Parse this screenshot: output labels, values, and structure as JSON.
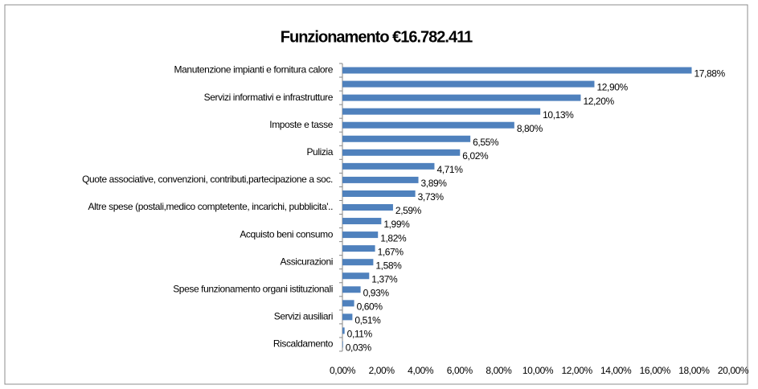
{
  "chart_data": {
    "type": "hbar",
    "title": "Funzionamento €16.782.411",
    "categories": [
      "Manutenzione impianti e fornitura calore",
      null,
      "Servizi informativi e infrastrutture",
      null,
      "Imposte e tasse",
      null,
      "Pulizia",
      null,
      "Quote associative, convenzioni, contributi,partecipazione a soc.",
      null,
      "Altre spese (postali,medico comptetente, incarichi, pubblicita'..",
      null,
      "Acquisto beni consumo",
      null,
      "Assicurazioni",
      null,
      "Spese funzionamento organi istituzionali",
      null,
      "Servizi ausiliari",
      null,
      "Riscaldamento"
    ],
    "values": [
      17.88,
      12.9,
      12.2,
      10.13,
      8.8,
      6.55,
      6.02,
      4.71,
      3.89,
      3.73,
      2.59,
      1.99,
      1.82,
      1.67,
      1.58,
      1.37,
      0.93,
      0.6,
      0.51,
      0.11,
      0.03
    ],
    "value_labels": [
      "17,88%",
      "12,90%",
      "12,20%",
      "10,13%",
      "8,80%",
      "6,55%",
      "6,02%",
      "4,71%",
      "3,89%",
      "3,73%",
      "2,59%",
      "1,99%",
      "1,82%",
      "1,67%",
      "1,58%",
      "1,37%",
      "0,93%",
      "0,60%",
      "0,51%",
      "0,11%",
      "0,03%"
    ],
    "color": "#4f81bd",
    "xlim": [
      0,
      20
    ],
    "xticks": [
      {
        "value": 0,
        "label": "0,00%"
      },
      {
        "value": 2,
        "label": "2,00%"
      },
      {
        "value": 4,
        "label": "4,00%"
      },
      {
        "value": 6,
        "label": "6,00%"
      },
      {
        "value": 8,
        "label": "8,00%"
      },
      {
        "value": 10,
        "label": "10,00%"
      },
      {
        "value": 12,
        "label": "12,00%"
      },
      {
        "value": 14,
        "label": "14,00%"
      },
      {
        "value": 16,
        "label": "16,00%"
      },
      {
        "value": 18,
        "label": "18,00%"
      },
      {
        "value": 20,
        "label": "20,00%"
      }
    ],
    "grid": false
  }
}
